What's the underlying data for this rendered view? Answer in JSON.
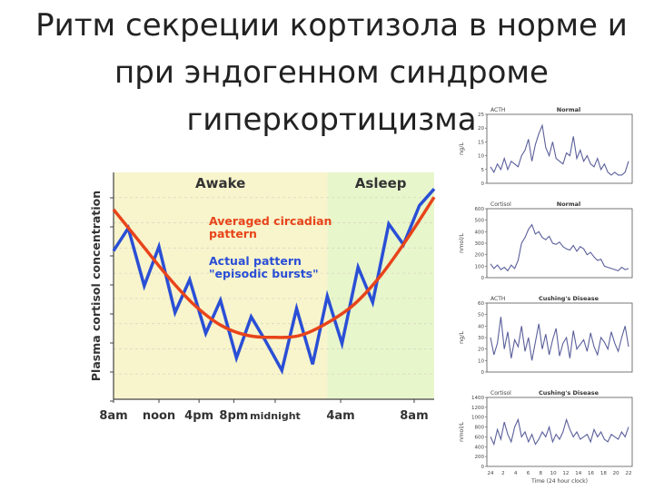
{
  "slide": {
    "title": "Ритм секреции кортизола в норме и при эндогенном синдроме гиперкортицизма"
  },
  "colors": {
    "awake_bg": "#f8f4cc",
    "asleep_bg": "#e8f6cc",
    "averaged_line": "#e8441a",
    "actual_line": "#2a4fd6",
    "mini_line": "#5a5f9a"
  },
  "chart_data": [
    {
      "type": "line",
      "title": "",
      "ylabel": "Plasma cortisol concentration",
      "xlabel": "",
      "x_tick_labels": [
        "8am",
        "noon",
        "4pm",
        "8pm",
        "midnight",
        "4am",
        "8am"
      ],
      "x_range": [
        0,
        24
      ],
      "regions": [
        {
          "label": "Awake",
          "from": 0,
          "to": 16
        },
        {
          "label": "Asleep",
          "from": 16,
          "to": 24
        }
      ],
      "series": [
        {
          "name": "Averaged circadian pattern",
          "x": [
            0,
            2,
            4,
            6,
            8,
            10,
            12,
            14,
            16,
            18,
            20,
            22,
            24
          ],
          "y": [
            92,
            76,
            60,
            46,
            36,
            31,
            30,
            31,
            37,
            46,
            60,
            78,
            98
          ]
        },
        {
          "name": "Actual pattern \"episodic bursts\"",
          "x": [
            0,
            1.1,
            2.3,
            3.4,
            4.6,
            5.7,
            6.9,
            8.0,
            9.2,
            10.3,
            11.4,
            12.6,
            13.7,
            14.9,
            16.0,
            17.1,
            18.3,
            19.4,
            20.6,
            21.7,
            22.9,
            24.0
          ],
          "y": [
            72,
            83,
            55,
            74,
            42,
            58,
            32,
            48,
            20,
            40,
            28,
            14,
            44,
            17,
            50,
            27,
            64,
            47,
            85,
            75,
            94,
            102
          ]
        }
      ]
    },
    {
      "type": "line",
      "title": "Normal",
      "ylabel": "ng/L",
      "corner_label": "ACTH",
      "y_tick_labels": [
        "0",
        "5",
        "10",
        "15",
        "20",
        "25"
      ],
      "ylim": [
        0,
        25
      ],
      "values": [
        6,
        4,
        7,
        5,
        9,
        5,
        8,
        7,
        6,
        10,
        12,
        16,
        8,
        14,
        18,
        21,
        13,
        10,
        15,
        9,
        8,
        7,
        11,
        10,
        17,
        9,
        12,
        8,
        10,
        7,
        6,
        9,
        5,
        7,
        4,
        3,
        4,
        3,
        3,
        4,
        8
      ]
    },
    {
      "type": "line",
      "title": "Normal",
      "ylabel": "nmol/L",
      "corner_label": "Cortisol",
      "y_tick_labels": [
        "0",
        "100",
        "200",
        "300",
        "400",
        "500",
        "600"
      ],
      "ylim": [
        0,
        600
      ],
      "values": [
        120,
        80,
        110,
        70,
        90,
        60,
        110,
        80,
        150,
        300,
        350,
        420,
        460,
        380,
        400,
        350,
        330,
        360,
        300,
        290,
        310,
        270,
        250,
        240,
        280,
        230,
        270,
        250,
        200,
        220,
        180,
        150,
        160,
        100,
        90,
        80,
        70,
        60,
        90,
        70,
        80
      ]
    },
    {
      "type": "line",
      "title": "Cushing's Disease",
      "ylabel": "ng/L",
      "corner_label": "ACTH",
      "y_tick_labels": [
        "0",
        "10",
        "20",
        "30",
        "40",
        "50",
        "60"
      ],
      "ylim": [
        0,
        60
      ],
      "values": [
        30,
        15,
        25,
        48,
        20,
        35,
        12,
        28,
        22,
        40,
        18,
        30,
        10,
        26,
        42,
        20,
        33,
        15,
        28,
        38,
        14,
        25,
        30,
        12,
        36,
        20,
        24,
        28,
        18,
        34,
        22,
        15,
        30,
        26,
        20,
        35,
        25,
        18,
        30,
        40,
        22
      ]
    },
    {
      "type": "line",
      "title": "Cushing's Disease",
      "ylabel": "nmol/L",
      "xlabel": "Time (24 hour clock)",
      "corner_label": "Cortisol",
      "y_tick_labels": [
        "0",
        "200",
        "400",
        "600",
        "800",
        "1000",
        "1200",
        "1400"
      ],
      "x_tick_labels": [
        "24",
        "2",
        "4",
        "6",
        "8",
        "10",
        "12",
        "14",
        "16",
        "18",
        "20",
        "22"
      ],
      "ylim": [
        0,
        1400
      ],
      "values": [
        600,
        450,
        750,
        550,
        900,
        650,
        500,
        800,
        950,
        600,
        700,
        500,
        650,
        450,
        550,
        700,
        600,
        800,
        500,
        650,
        550,
        700,
        950,
        750,
        600,
        700,
        550,
        600,
        650,
        500,
        750,
        600,
        700,
        550,
        500,
        650,
        600,
        550,
        700,
        600,
        800
      ]
    }
  ]
}
